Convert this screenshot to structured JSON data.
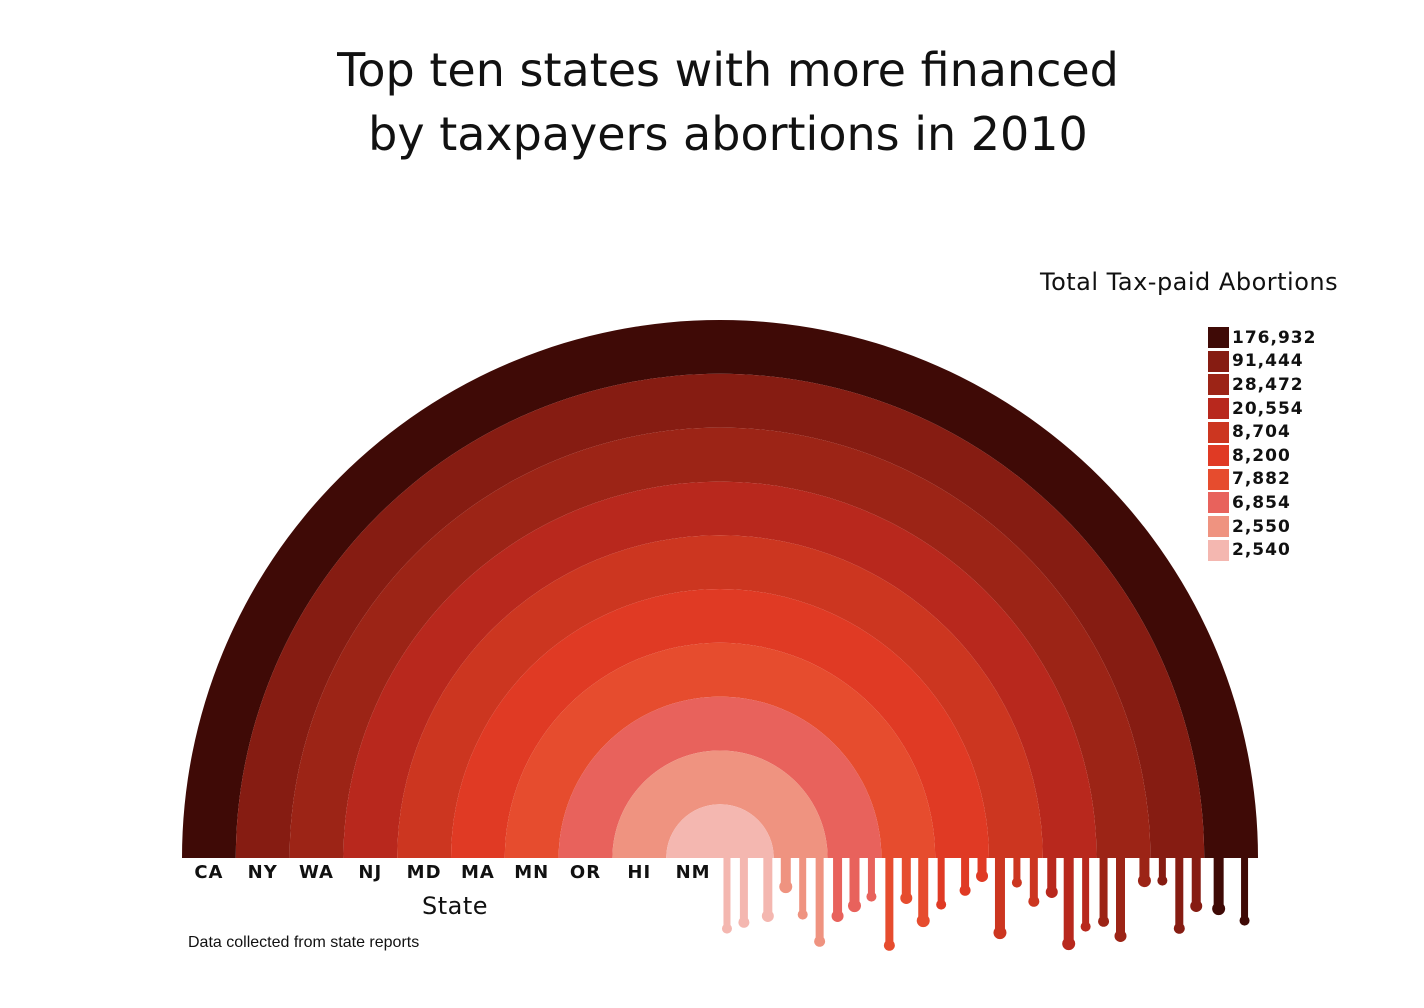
{
  "title_lines": [
    "Top ten states with more financed",
    "by taxpayers abortions in 2010"
  ],
  "chart_data": {
    "type": "radial-bar",
    "title": "Top ten states with more financed by taxpayers abortions in 2010",
    "xlabel": "State",
    "legend_title": "Total Tax-paid Abortions",
    "legend_placement": "top-right",
    "categories": [
      "CA",
      "NY",
      "WA",
      "NJ",
      "MD",
      "MA",
      "MN",
      "OR",
      "HI",
      "NM"
    ],
    "values": [
      176932,
      91444,
      28472,
      20554,
      8704,
      8200,
      7882,
      6854,
      2550,
      2540
    ],
    "value_labels": [
      "176,932",
      "91,444",
      "28,472",
      "20,554",
      "8,704",
      "8,200",
      "7,882",
      "6,854",
      "2,550",
      "2,540"
    ],
    "colors": [
      "#3f0a06",
      "#861c12",
      "#9c2416",
      "#b8281d",
      "#cc3620",
      "#e03a24",
      "#e64c2e",
      "#e8625c",
      "#ef9380",
      "#f4b7b0"
    ],
    "grid": false
  },
  "source_note": "Data collected from state reports"
}
